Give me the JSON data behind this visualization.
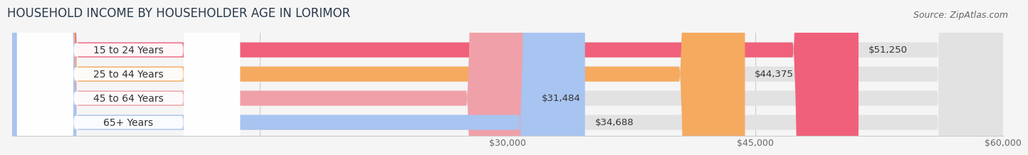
{
  "title": "HOUSEHOLD INCOME BY HOUSEHOLDER AGE IN LORIMOR",
  "source": "Source: ZipAtlas.com",
  "categories": [
    "15 to 24 Years",
    "25 to 44 Years",
    "45 to 64 Years",
    "65+ Years"
  ],
  "values": [
    51250,
    44375,
    31484,
    34688
  ],
  "bar_colors": [
    "#f0607a",
    "#f5aa60",
    "#f0a0a8",
    "#a8c4f0"
  ],
  "background_color": "#f5f5f5",
  "bar_bg_color": "#e2e2e2",
  "xlim": [
    0,
    60000
  ],
  "xtick_positions": [
    15000,
    30000,
    45000,
    60000
  ],
  "xtick_labels": [
    "",
    "$30,000",
    "$45,000",
    "$60,000"
  ],
  "value_labels": [
    "$51,250",
    "$44,375",
    "$31,484",
    "$34,688"
  ],
  "title_fontsize": 12,
  "source_fontsize": 9,
  "label_fontsize": 10,
  "tick_fontsize": 9
}
